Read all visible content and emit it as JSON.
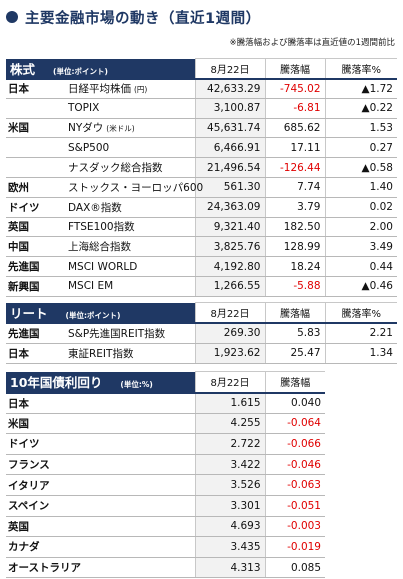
{
  "header": {
    "title": "主要金融市場の動き（直近1週間）",
    "note": "※騰落幅および騰落率は直近値の1週間前比"
  },
  "sections": [
    {
      "title": "株式",
      "unit": "(単位:ポイント)",
      "columns": [
        "8月22日",
        "騰落幅",
        "騰落率%"
      ],
      "rows": [
        {
          "region": "日本",
          "name": "日経平均株価",
          "unit": "(円)",
          "values": [
            "42,633.29",
            "-745.02",
            "▲1.72"
          ]
        },
        {
          "name": "TOPIX",
          "values": [
            "3,100.87",
            "-6.81",
            "▲0.22"
          ]
        },
        {
          "region": "米国",
          "name": "NYダウ",
          "unit": "(米ドル)",
          "values": [
            "45,631.74",
            "685.62",
            "1.53"
          ]
        },
        {
          "name": "S&P500",
          "values": [
            "6,466.91",
            "17.11",
            "0.27"
          ]
        },
        {
          "name": "ナスダック総合指数",
          "values": [
            "21,496.54",
            "-126.44",
            "▲0.58"
          ]
        },
        {
          "region": "欧州",
          "name": "ストックス・ヨーロッパ600",
          "values": [
            "561.30",
            "7.74",
            "1.40"
          ]
        },
        {
          "region": "ドイツ",
          "name": "DAX®指数",
          "values": [
            "24,363.09",
            "3.79",
            "0.02"
          ]
        },
        {
          "region": "英国",
          "name": "FTSE100指数",
          "values": [
            "9,321.40",
            "182.50",
            "2.00"
          ]
        },
        {
          "region": "中国",
          "name": "上海総合指数",
          "values": [
            "3,825.76",
            "128.99",
            "3.49"
          ]
        },
        {
          "region": "先進国",
          "name": "MSCI WORLD",
          "values": [
            "4,192.80",
            "18.24",
            "0.44"
          ]
        },
        {
          "region": "新興国",
          "name": "MSCI EM",
          "values": [
            "1,266.55",
            "-5.88",
            "▲0.46"
          ]
        }
      ]
    },
    {
      "title": "リート",
      "unit": "(単位:ポイント)",
      "columns": [
        "8月22日",
        "騰落幅",
        "騰落率%"
      ],
      "rows": [
        {
          "region": "先進国",
          "name": "S&P先進国REIT指数",
          "values": [
            "269.30",
            "5.83",
            "2.21"
          ]
        },
        {
          "region": "日本",
          "name": "東証REIT指数",
          "values": [
            "1,923.62",
            "25.47",
            "1.34"
          ]
        }
      ]
    },
    {
      "title": "10年国債利回り",
      "unit": "(単位:%)",
      "columns": [
        "8月22日",
        "騰落幅"
      ],
      "rows": [
        {
          "region": "日本",
          "values": [
            "1.615",
            "0.040"
          ]
        },
        {
          "region": "米国",
          "values": [
            "4.255",
            "-0.064"
          ]
        },
        {
          "region": "ドイツ",
          "values": [
            "2.722",
            "-0.066"
          ]
        },
        {
          "region": "フランス",
          "values": [
            "3.422",
            "-0.046"
          ]
        },
        {
          "region": "イタリア",
          "values": [
            "3.526",
            "-0.063"
          ]
        },
        {
          "region": "スペイン",
          "values": [
            "3.301",
            "-0.051"
          ]
        },
        {
          "region": "英国",
          "values": [
            "4.693",
            "-0.003"
          ]
        },
        {
          "region": "カナダ",
          "values": [
            "3.435",
            "-0.019"
          ]
        },
        {
          "region": "オーストラリア",
          "values": [
            "4.313",
            "0.085"
          ]
        }
      ]
    }
  ]
}
